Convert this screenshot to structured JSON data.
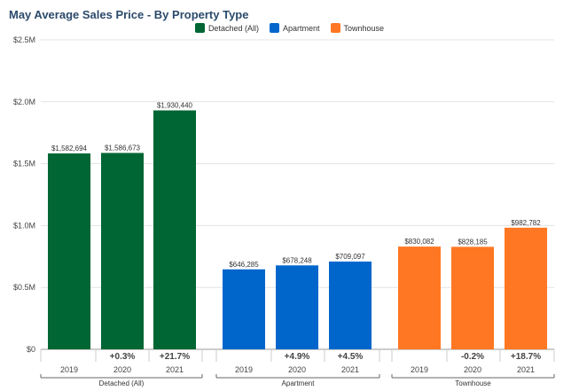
{
  "chart_data": {
    "type": "bar",
    "title": "May Average Sales Price - By Property Type",
    "ylim": [
      0,
      2500000
    ],
    "yticks": [
      "$0",
      "$0.5M",
      "$1.0M",
      "$1.5M",
      "$2.0M",
      "$2.5M"
    ],
    "ytick_values": [
      0,
      500000,
      1000000,
      1500000,
      2000000,
      2500000
    ],
    "grid": true,
    "legend_position": "top-center",
    "groups": [
      {
        "name": "Detached (All)",
        "color": "#006633",
        "bars": [
          {
            "year": "2019",
            "value": 1582694,
            "label": "$1,582,694",
            "change": ""
          },
          {
            "year": "2020",
            "value": 1586673,
            "label": "$1,586,673",
            "change": "+0.3%"
          },
          {
            "year": "2021",
            "value": 1930440,
            "label": "$1,930,440",
            "change": "+21.7%"
          }
        ]
      },
      {
        "name": "Apartment",
        "color": "#0066cc",
        "bars": [
          {
            "year": "2019",
            "value": 646285,
            "label": "$646,285",
            "change": ""
          },
          {
            "year": "2020",
            "value": 678248,
            "label": "$678,248",
            "change": "+4.9%"
          },
          {
            "year": "2021",
            "value": 709097,
            "label": "$709,097",
            "change": "+4.5%"
          }
        ]
      },
      {
        "name": "Townhouse",
        "color": "#ff7722",
        "bars": [
          {
            "year": "2019",
            "value": 830082,
            "label": "$830,082",
            "change": ""
          },
          {
            "year": "2020",
            "value": 828185,
            "label": "$828,185",
            "change": "-0.2%"
          },
          {
            "year": "2021",
            "value": 982782,
            "label": "$982,782",
            "change": "+18.7%"
          }
        ]
      }
    ],
    "legend": [
      {
        "name": "Detached (All)",
        "color": "#006633"
      },
      {
        "name": "Apartment",
        "color": "#0066cc"
      },
      {
        "name": "Townhouse",
        "color": "#ff7722"
      }
    ]
  }
}
